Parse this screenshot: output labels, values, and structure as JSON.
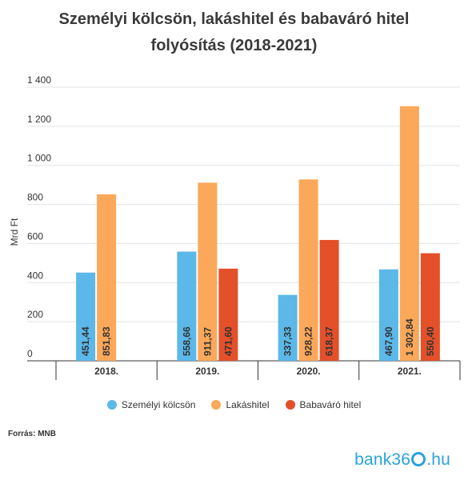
{
  "chart_data": {
    "type": "bar",
    "title_line1": "Személyi kölcsön, lakáshitel és babaváró hitel",
    "title_line2": "folyósítás (2018-2021)",
    "ylabel": "Mrd Ft",
    "xlabel": "",
    "ylim": [
      0,
      1400
    ],
    "yticks": [
      0,
      200,
      400,
      600,
      800,
      1000,
      1200,
      1400
    ],
    "ytick_labels": [
      "0",
      "200",
      "400",
      "600",
      "800",
      "1 000",
      "1 200",
      "1 400"
    ],
    "categories": [
      "2018.",
      "2019.",
      "2020.",
      "2021."
    ],
    "grid": true,
    "legend_position": "bottom",
    "series": [
      {
        "name": "Személyi kölcsön",
        "color": "#5bb8e8",
        "values": [
          451.44,
          558.66,
          337.33,
          467.9
        ],
        "labels": [
          "451,44",
          "558,66",
          "337,33",
          "467,90"
        ]
      },
      {
        "name": "Lakáshitel",
        "color": "#fba85a",
        "values": [
          851.83,
          911.37,
          928.22,
          1302.84
        ],
        "labels": [
          "851,83",
          "911,37",
          "928,22",
          "1 302,84"
        ]
      },
      {
        "name": "Babaváró hitel",
        "color": "#e4502a",
        "values": [
          null,
          471.6,
          618.37,
          550.4
        ],
        "labels": [
          "",
          "471,60",
          "618,37",
          "550,40"
        ]
      }
    ]
  },
  "source": "Forrás: MNB",
  "logo": {
    "part1": "bank36",
    "part2": ".hu"
  }
}
